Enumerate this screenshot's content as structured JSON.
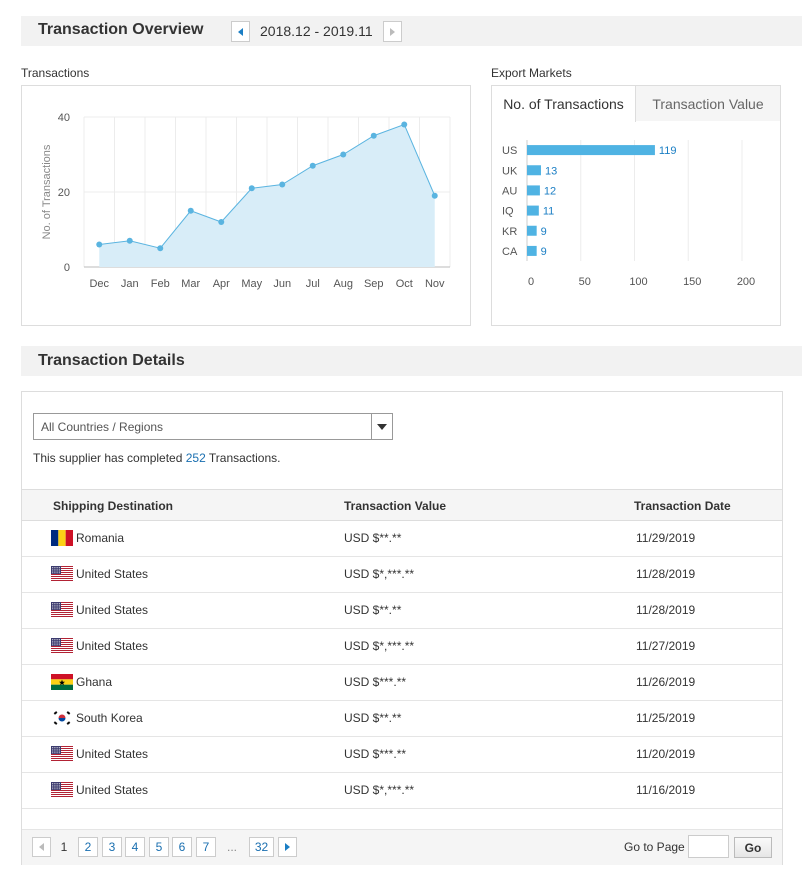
{
  "overview": {
    "title": "Transaction Overview",
    "date_range": "2018.12 - 2019.11"
  },
  "transactions_panel": {
    "label": "Transactions"
  },
  "markets_panel": {
    "label": "Export Markets",
    "tabs": [
      {
        "label": "No. of Transactions",
        "active": true
      },
      {
        "label": "Transaction Value",
        "active": false
      }
    ]
  },
  "chart_data": [
    {
      "type": "area",
      "title": "",
      "xlabel": "",
      "ylabel": "No. of Transactions",
      "categories": [
        "Dec",
        "Jan",
        "Feb",
        "Mar",
        "Apr",
        "May",
        "Jun",
        "Jul",
        "Aug",
        "Sep",
        "Oct",
        "Nov"
      ],
      "values": [
        6,
        7,
        5,
        15,
        12,
        21,
        22,
        27,
        30,
        35,
        38,
        19
      ],
      "ylim": [
        0,
        40
      ],
      "yticks": [
        0,
        20,
        40
      ],
      "grid": true,
      "color": "#5ab4e0",
      "fill": "#d8edf8"
    },
    {
      "type": "bar",
      "orientation": "horizontal",
      "categories": [
        "US",
        "UK",
        "AU",
        "IQ",
        "KR",
        "CA"
      ],
      "values": [
        119,
        13,
        12,
        11,
        9,
        9
      ],
      "xlim": [
        0,
        200
      ],
      "xticks": [
        0,
        50,
        100,
        150,
        200
      ],
      "grid": true,
      "color": "#4fb3e3"
    }
  ],
  "details": {
    "title": "Transaction Details",
    "filter_value": "All Countries / Regions",
    "summary_prefix": "This supplier has completed ",
    "summary_count": "252",
    "summary_suffix": " Transactions.",
    "columns": [
      "Shipping Destination",
      "Transaction Value",
      "Transaction Date"
    ],
    "rows": [
      {
        "flag": "romania",
        "destination": "Romania",
        "value": "USD $**.**",
        "date": "11/29/2019"
      },
      {
        "flag": "us",
        "destination": "United States",
        "value": "USD $*,***.**",
        "date": "11/28/2019"
      },
      {
        "flag": "us",
        "destination": "United States",
        "value": "USD $**.**",
        "date": "11/28/2019"
      },
      {
        "flag": "us",
        "destination": "United States",
        "value": "USD $*,***.**",
        "date": "11/27/2019"
      },
      {
        "flag": "ghana",
        "destination": "Ghana",
        "value": "USD $***.**",
        "date": "11/26/2019"
      },
      {
        "flag": "south-korea",
        "destination": "South Korea",
        "value": "USD $**.**",
        "date": "11/25/2019"
      },
      {
        "flag": "us",
        "destination": "United States",
        "value": "USD $***.**",
        "date": "11/20/2019"
      },
      {
        "flag": "us",
        "destination": "United States",
        "value": "USD $*,***.**",
        "date": "11/16/2019"
      }
    ]
  },
  "pager": {
    "pages": [
      "1",
      "2",
      "3",
      "4",
      "5",
      "6",
      "7",
      "...",
      "32"
    ],
    "current": "1",
    "goto_label": "Go to Page",
    "goto_value": "",
    "go_label": "Go"
  }
}
